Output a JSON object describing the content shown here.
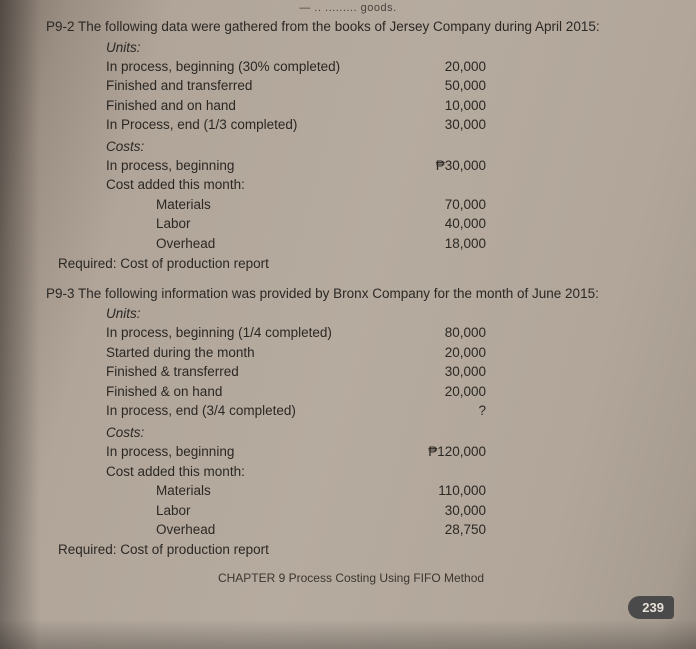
{
  "cutoff_text": "— .. ......... goods.",
  "p1": {
    "num": "P9-2",
    "intro": "The following data were gathered from the books of Jersey Company during April 2015:",
    "units_label": "Units:",
    "units": [
      {
        "label": "In process, beginning (30% completed)",
        "value": "20,000"
      },
      {
        "label": "Finished and transferred",
        "value": "50,000"
      },
      {
        "label": "Finished and on hand",
        "value": "10,000"
      },
      {
        "label": "In Process, end (1/3 completed)",
        "value": "30,000"
      }
    ],
    "costs_label": "Costs:",
    "costs_top": [
      {
        "label": "In process, beginning",
        "value": "₱30,000"
      },
      {
        "label": "Cost added this month:",
        "value": ""
      }
    ],
    "costs_sub": [
      {
        "label": "Materials",
        "value": "70,000"
      },
      {
        "label": "Labor",
        "value": "40,000"
      },
      {
        "label": "Overhead",
        "value": "18,000"
      }
    ],
    "required": "Required: Cost of production report"
  },
  "p2": {
    "num": "P9-3",
    "intro": "The following information was provided by Bronx Company for the month of June 2015:",
    "units_label": "Units:",
    "units": [
      {
        "label": "In process, beginning (1/4 completed)",
        "value": "80,000"
      },
      {
        "label": "Started during the month",
        "value": "20,000"
      },
      {
        "label": "Finished & transferred",
        "value": "30,000"
      },
      {
        "label": "Finished & on hand",
        "value": "20,000"
      },
      {
        "label": "In process, end (3/4 completed)",
        "value": "?"
      }
    ],
    "costs_label": "Costs:",
    "costs_top": [
      {
        "label": "In process, beginning",
        "value": "₱120,000"
      },
      {
        "label": "Cost added this month:",
        "value": ""
      }
    ],
    "costs_sub": [
      {
        "label": "Materials",
        "value": "110,000"
      },
      {
        "label": "Labor",
        "value": "30,000"
      },
      {
        "label": "Overhead",
        "value": "28,750"
      }
    ],
    "required": "Required: Cost of production report"
  },
  "footer": "CHAPTER 9 Process Costing Using FIFO Method",
  "page_number": "239"
}
